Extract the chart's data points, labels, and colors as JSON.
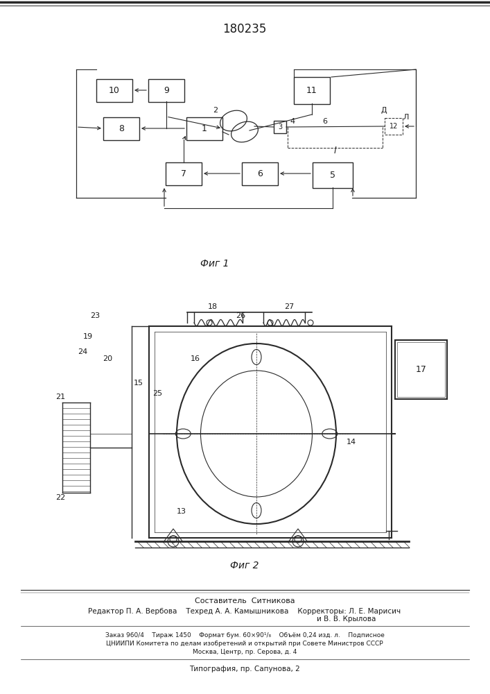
{
  "title": "180235",
  "fig1_caption": "Фиг 1",
  "fig2_caption": "Фиг 2",
  "background_color": "#ffffff",
  "line_color": "#2a2a2a",
  "text_color": "#1a1a1a",
  "footer_lines": [
    "Составитель  Ситникова",
    "Редактор П. А. Вербова    Техред А. А. Камышникова    Корректоры: Л. Е. Марисич",
    "и В. В. Крылова",
    "Заказ 960/4    Тираж 1450    Формат бум. 60×90¹/₈    Объём 0,24 изд. л.    Подписное",
    "ЦНИИПИ Комитета по делам изобретений и открытий при Совете Министров СССР",
    "Москва, Центр, пр. Серова, д. 4",
    "Типография, пр. Сапунова, 2"
  ]
}
